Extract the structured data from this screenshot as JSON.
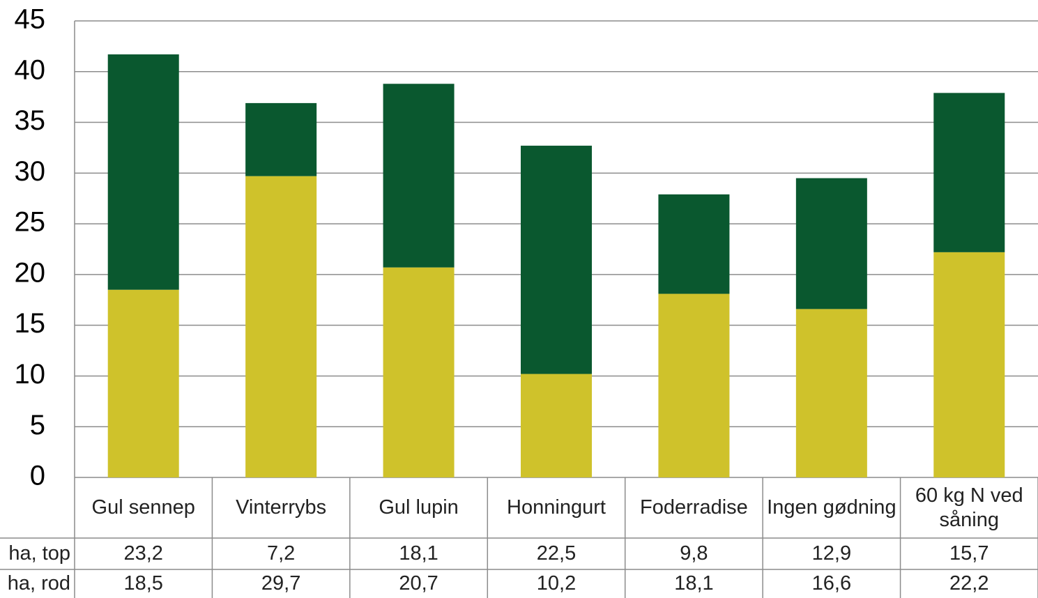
{
  "chart_data": {
    "type": "stacked_bar",
    "categories": [
      "Gul sennep",
      "Vinterrybs",
      "Gul lupin",
      "Honningurt",
      "Foderradise",
      "Ingen gødning",
      "60 kg N ved såning"
    ],
    "series": [
      {
        "name": "ha, top",
        "color": "#0a582f",
        "values": [
          23.2,
          7.2,
          18.1,
          22.5,
          9.8,
          12.9,
          15.7
        ],
        "value_labels": [
          "23,2",
          "7,2",
          "18,1",
          "22,5",
          "9,8",
          "12,9",
          "15,7"
        ]
      },
      {
        "name": "ha, rod",
        "color": "#cfc22b",
        "values": [
          18.5,
          29.7,
          20.7,
          10.2,
          18.1,
          16.6,
          22.2
        ],
        "value_labels": [
          "18,5",
          "29,7",
          "20,7",
          "10,2",
          "18,1",
          "16,6",
          "22,2"
        ]
      }
    ],
    "ylim": [
      0,
      45
    ],
    "yticks": [
      0,
      5,
      10,
      15,
      20,
      25,
      30,
      35,
      40,
      45
    ],
    "grid": true
  }
}
